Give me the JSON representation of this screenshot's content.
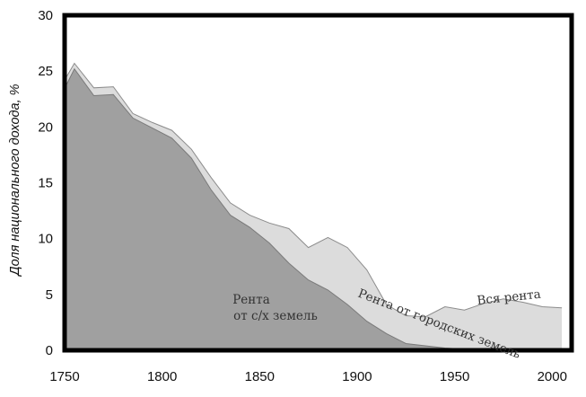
{
  "chart_data": {
    "type": "area",
    "stacked": true,
    "title": "",
    "xlabel": "",
    "ylabel": "Доля национального дохода, %",
    "xlim": [
      1750,
      2010
    ],
    "ylim": [
      0,
      30
    ],
    "x_ticks": [
      1750,
      1800,
      1850,
      1900,
      1950,
      2000
    ],
    "y_ticks": [
      0,
      5,
      10,
      15,
      20,
      25,
      30
    ],
    "grid": false,
    "legend": "none",
    "x": [
      1751,
      1755,
      1765,
      1775,
      1785,
      1795,
      1805,
      1815,
      1825,
      1835,
      1845,
      1855,
      1865,
      1875,
      1885,
      1895,
      1905,
      1915,
      1925,
      1935,
      1945,
      1955,
      1965,
      1975,
      1985,
      1995,
      2005
    ],
    "series": [
      {
        "name": "Рента от с/х земель",
        "values": [
          23.8,
          25.2,
          22.8,
          22.9,
          20.8,
          19.9,
          19.0,
          17.2,
          14.4,
          12.1,
          11.0,
          9.6,
          7.8,
          6.3,
          5.4,
          4.1,
          2.6,
          1.5,
          0.6,
          0.4,
          0.2,
          0.1,
          0.1,
          0.1,
          0.1,
          0.1,
          0.1
        ]
      },
      {
        "name": "Рента от городских земель",
        "values": [
          0.7,
          0.5,
          0.7,
          0.7,
          0.4,
          0.5,
          0.7,
          0.8,
          1.1,
          1.1,
          1.1,
          1.8,
          3.1,
          2.9,
          4.7,
          5.1,
          4.6,
          2.6,
          2.5,
          2.6,
          3.7,
          3.5,
          4.1,
          4.5,
          4.2,
          3.8,
          3.7
        ]
      }
    ],
    "annotations": {
      "agri": [
        "Рента",
        "от с/х земель"
      ],
      "urban": "Рента от городских земель",
      "total": "Вся рента"
    }
  },
  "colors": {
    "agri_fill": "#a0a0a0",
    "urban_fill": "#dcdcdc",
    "frame": "#000000",
    "agri_edge": "#7a7a7a",
    "urban_edge": "#8c8c8c"
  }
}
